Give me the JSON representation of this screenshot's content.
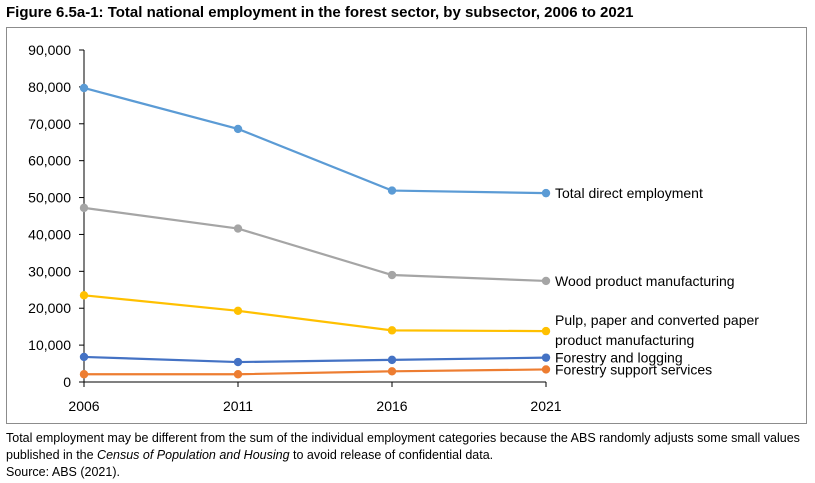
{
  "figure_title": "Figure 6.5a-1: Total national employment in the forest sector, by subsector, 2006 to 2021",
  "note": {
    "part1": "Total employment may be different from the sum of the individual employment categories because the ABS randomly adjusts some small values published in the ",
    "italic": "Census of Population and Housing",
    "part2": " to avoid release of confidential data."
  },
  "source": "Source: ABS (2021).",
  "chart_data": {
    "type": "line",
    "title": "",
    "xlabel": "",
    "ylabel": "",
    "categories": [
      "2006",
      "2011",
      "2016",
      "2021"
    ],
    "ylim": [
      0,
      90000
    ],
    "yticks": [
      0,
      10000,
      20000,
      30000,
      40000,
      50000,
      60000,
      70000,
      80000,
      90000
    ],
    "ytick_labels": [
      "0",
      "10,000",
      "20,000",
      "30,000",
      "40,000",
      "50,000",
      "60,000",
      "70,000",
      "80,000",
      "90,000"
    ],
    "grid": false,
    "legend": "inline labels at right end of each line",
    "series": [
      {
        "name": "Total direct employment",
        "color": "#5B9BD5",
        "values": [
          79700,
          68600,
          51900,
          51200
        ],
        "label_lines": [
          "Total direct employment"
        ]
      },
      {
        "name": "Wood product manufacturing",
        "color": "#A5A5A5",
        "values": [
          47200,
          41600,
          29000,
          27400
        ],
        "label_lines": [
          "Wood product manufacturing"
        ]
      },
      {
        "name": "Pulp, paper and converted paper product manufacturing",
        "color": "#FFC000",
        "values": [
          23500,
          19300,
          14000,
          13800
        ],
        "label_lines": [
          "Pulp, paper and converted paper",
          "product manufacturing"
        ]
      },
      {
        "name": "Forestry and logging",
        "color": "#4472C4",
        "values": [
          6800,
          5400,
          6000,
          6600
        ],
        "label_lines": [
          "Forestry and logging"
        ]
      },
      {
        "name": "Forestry support services",
        "color": "#ED7D31",
        "values": [
          2100,
          2100,
          2900,
          3400
        ],
        "label_lines": [
          "Forestry support services"
        ]
      }
    ]
  }
}
